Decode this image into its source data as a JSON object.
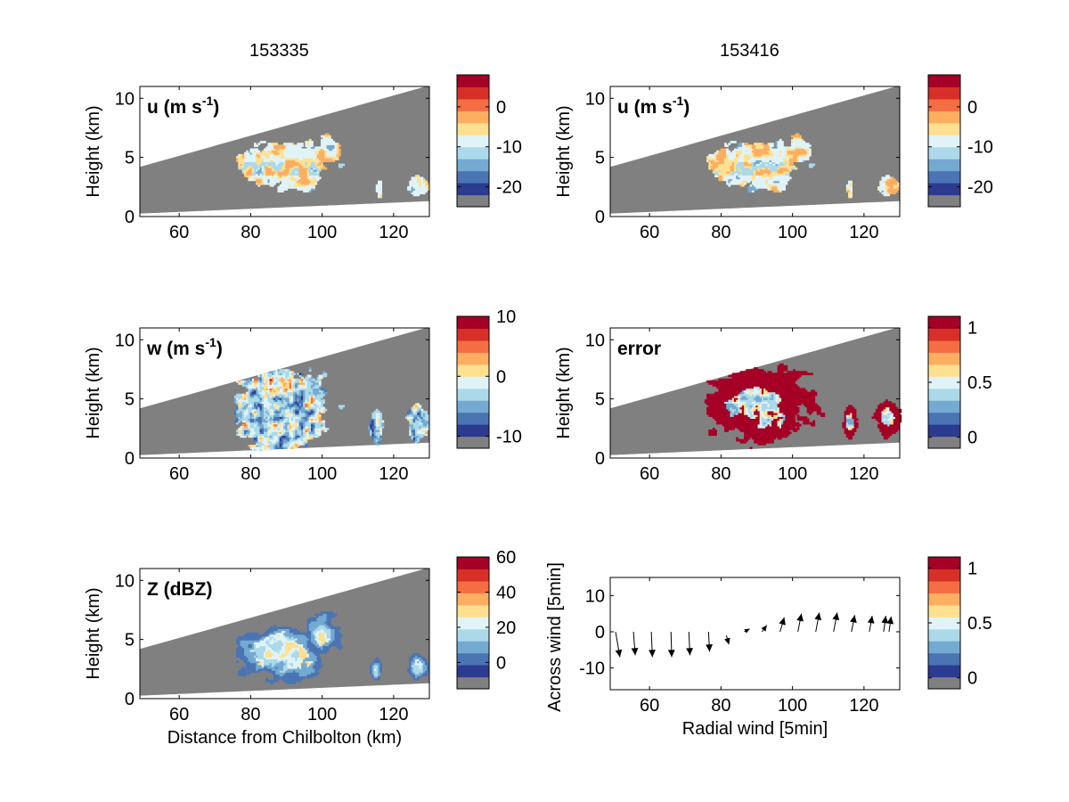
{
  "column_titles": [
    "153335",
    "153416"
  ],
  "palette": [
    "#808080",
    "#2c3a8f",
    "#4a74b4",
    "#74aad1",
    "#abd9e9",
    "#e0f3f8",
    "#fee090",
    "#fdae61",
    "#f46d43",
    "#d73027",
    "#a50026"
  ],
  "chart_data": [
    {
      "id": "u-left",
      "type": "heatmap",
      "field_label": "u (m s",
      "field_sup": "-1",
      "field_close": ")",
      "ylabel": "Height (km)",
      "xlabel": "",
      "xticks": [
        "60",
        "80",
        "100",
        "120"
      ],
      "yticks": [
        "0",
        "5",
        "10"
      ],
      "xlim": [
        49,
        130
      ],
      "ylim": [
        0,
        11
      ],
      "colorbar": {
        "ticks": [
          "0",
          "-10",
          "-20"
        ],
        "range": [
          -25,
          8
        ]
      }
    },
    {
      "id": "u-right",
      "type": "heatmap",
      "field_label": "u (m s",
      "field_sup": "-1",
      "field_close": ")",
      "ylabel": "Height (km)",
      "xlabel": "",
      "xticks": [
        "60",
        "80",
        "100",
        "120"
      ],
      "yticks": [
        "0",
        "5",
        "10"
      ],
      "xlim": [
        49,
        130
      ],
      "ylim": [
        0,
        11
      ],
      "colorbar": {
        "ticks": [
          "0",
          "-10",
          "-20"
        ],
        "range": [
          -25,
          8
        ]
      }
    },
    {
      "id": "w-left",
      "type": "heatmap",
      "field_label": "w (m s",
      "field_sup": "-1",
      "field_close": ")",
      "ylabel": "Height (km)",
      "xlabel": "",
      "xticks": [
        "60",
        "80",
        "100",
        "120"
      ],
      "yticks": [
        "0",
        "5",
        "10"
      ],
      "xlim": [
        49,
        130
      ],
      "ylim": [
        0,
        11
      ],
      "colorbar": {
        "ticks": [
          "10",
          "0",
          "-10"
        ],
        "range": [
          -12,
          10
        ]
      }
    },
    {
      "id": "error-right",
      "type": "heatmap",
      "field_label": "error",
      "field_sup": "",
      "field_close": "",
      "ylabel": "Height (km)",
      "xlabel": "",
      "xticks": [
        "60",
        "80",
        "100",
        "120"
      ],
      "yticks": [
        "0",
        "5",
        "10"
      ],
      "xlim": [
        49,
        130
      ],
      "ylim": [
        0,
        11
      ],
      "colorbar": {
        "ticks": [
          "1",
          "0.5",
          "0"
        ],
        "range": [
          -0.1,
          1.1
        ]
      }
    },
    {
      "id": "z-left",
      "type": "heatmap",
      "field_label": "Z (dBZ)",
      "field_sup": "",
      "field_close": "",
      "ylabel": "Height (km)",
      "xlabel": "Distance from Chilbolton (km)",
      "xticks": [
        "60",
        "80",
        "100",
        "120"
      ],
      "yticks": [
        "0",
        "5",
        "10"
      ],
      "xlim": [
        49,
        130
      ],
      "ylim": [
        0,
        11
      ],
      "colorbar": {
        "ticks": [
          "60",
          "40",
          "20",
          "0"
        ],
        "range": [
          -15,
          60
        ]
      }
    },
    {
      "id": "wind-right",
      "type": "scatter",
      "ylabel": "Across wind [5min]",
      "xlabel": "Radial wind [5min]",
      "xticks": [
        "60",
        "80",
        "100",
        "120"
      ],
      "yticks": [
        "10",
        "0",
        "-10"
      ],
      "xlim": [
        49,
        130
      ],
      "ylim": [
        -16,
        15
      ],
      "arrows": [
        {
          "x": 50.5,
          "y": 0,
          "u": 1.2,
          "v": -7
        },
        {
          "x": 55.5,
          "y": 0,
          "u": 0.5,
          "v": -6.5
        },
        {
          "x": 60.5,
          "y": 0,
          "u": 0.3,
          "v": -7
        },
        {
          "x": 66,
          "y": 0,
          "u": 0.2,
          "v": -7
        },
        {
          "x": 71,
          "y": 0,
          "u": 0.3,
          "v": -6.5
        },
        {
          "x": 76.5,
          "y": 0,
          "u": 0.3,
          "v": -5.5
        },
        {
          "x": 81.5,
          "y": -1,
          "u": 0.7,
          "v": -2.5
        },
        {
          "x": 86.5,
          "y": 0,
          "u": 1.5,
          "v": 0.8
        },
        {
          "x": 91.5,
          "y": 0,
          "u": 1.3,
          "v": 1.8
        },
        {
          "x": 96.5,
          "y": 0,
          "u": 1.2,
          "v": 4
        },
        {
          "x": 101.5,
          "y": 0,
          "u": 1.0,
          "v": 5
        },
        {
          "x": 106.5,
          "y": 0,
          "u": 1.0,
          "v": 5.3
        },
        {
          "x": 111.5,
          "y": 0,
          "u": 1.0,
          "v": 5.3
        },
        {
          "x": 116.5,
          "y": 0,
          "u": 0.9,
          "v": 4.6
        },
        {
          "x": 121.5,
          "y": 0,
          "u": 0.8,
          "v": 4.4
        },
        {
          "x": 125.5,
          "y": 0,
          "u": 0.6,
          "v": 4.4
        },
        {
          "x": 127,
          "y": 0,
          "u": 0.6,
          "v": 4.2
        }
      ],
      "colorbar": {
        "ticks": [
          "1",
          "0.5",
          "0"
        ],
        "range": [
          -0.1,
          1.1
        ]
      }
    }
  ]
}
